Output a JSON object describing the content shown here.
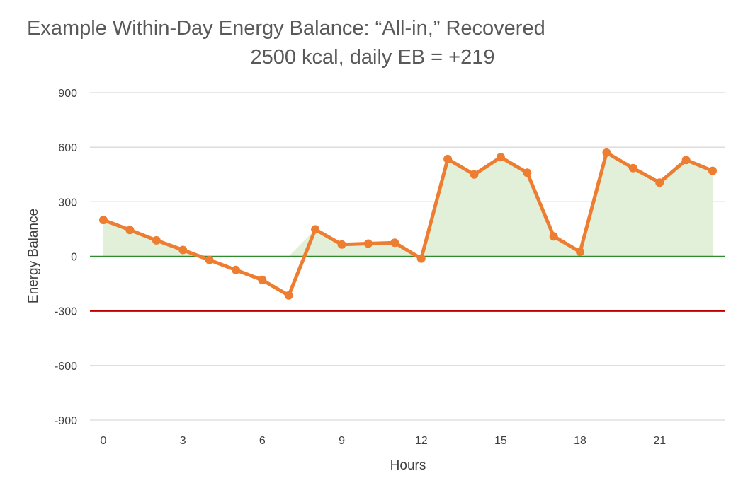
{
  "chart_data": {
    "type": "line",
    "title": "Example Within-Day Energy Balance: “All-in,” Recovered",
    "subtitle": "2500 kcal, daily EB = +219",
    "xlabel": "Hours",
    "ylabel": "Energy Balance",
    "xlim": [
      0,
      23
    ],
    "ylim": [
      -900,
      900
    ],
    "x_ticks": [
      0,
      3,
      6,
      9,
      12,
      15,
      18,
      21
    ],
    "y_ticks": [
      900,
      600,
      300,
      0,
      -300,
      -600,
      -900
    ],
    "grid": true,
    "legend": "none",
    "reference_lines": [
      {
        "y": 0,
        "color": "#2e8b2e"
      },
      {
        "y": -300,
        "color": "#c00000"
      }
    ],
    "series": [
      {
        "color": "#ed7d31",
        "fill_color": "#e2f0d9",
        "x": [
          0,
          1,
          2,
          3,
          4,
          5,
          6,
          7,
          8,
          9,
          10,
          11,
          12,
          13,
          14,
          15,
          16,
          17,
          18,
          19,
          20,
          21,
          22,
          23
        ],
        "values": [
          200,
          145,
          88,
          35,
          -20,
          -75,
          -130,
          -215,
          148,
          65,
          70,
          75,
          -12,
          535,
          450,
          545,
          460,
          110,
          25,
          570,
          485,
          405,
          530,
          470
        ]
      }
    ]
  }
}
